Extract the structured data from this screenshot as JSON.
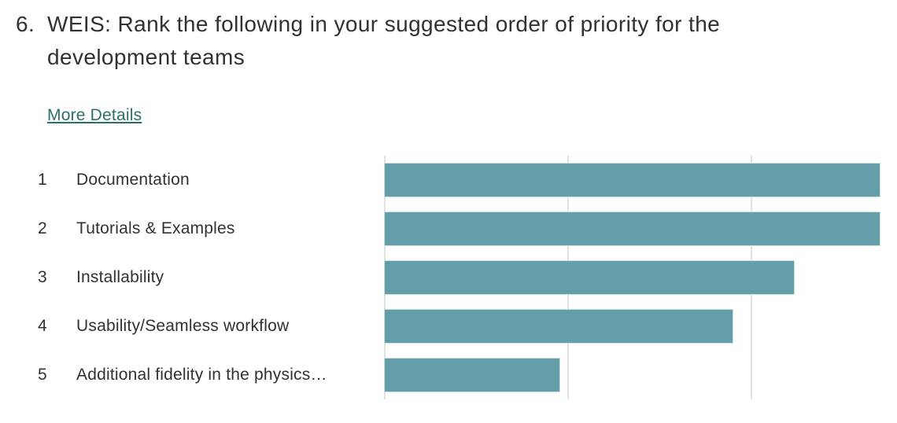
{
  "question": {
    "number": "6.",
    "title": "WEIS: Rank the following in your suggested order of priority for the development teams"
  },
  "links": {
    "more_details": "More Details"
  },
  "colors": {
    "page_bg": "#ffffff",
    "title_text": "#323130",
    "row_text": "#323130",
    "link": "#2b6e6a",
    "bar_fill": "#649ea8",
    "bar_stroke": "#cfe0e3",
    "gridline": "#e1e1e1"
  },
  "chart_data": {
    "type": "bar",
    "orientation": "horizontal",
    "title": "",
    "categories": [
      "Documentation",
      "Tutorials & Examples",
      "Installability",
      "Usability/Seamless workflow",
      "Additional fidelity in the physics…"
    ],
    "ranks": [
      1,
      2,
      3,
      4,
      5
    ],
    "values_pct_of_plot": [
      96.8,
      96.8,
      80.1,
      68.1,
      34.4
    ],
    "values_relative_to_max": [
      1.0,
      1.0,
      0.83,
      0.7,
      0.36
    ],
    "gridlines_pct": [
      0,
      35.7,
      71.5
    ],
    "bar_color": "#649ea8",
    "tick_labels_visible": false,
    "legend": "none",
    "grid": "vertical-lines-on"
  },
  "rows": [
    {
      "rank": "1",
      "label": "Documentation",
      "bar_pct": 96.8
    },
    {
      "rank": "2",
      "label": "Tutorials & Examples",
      "bar_pct": 96.8
    },
    {
      "rank": "3",
      "label": "Installability",
      "bar_pct": 80.1
    },
    {
      "rank": "4",
      "label": "Usability/Seamless workflow",
      "bar_pct": 68.1
    },
    {
      "rank": "5",
      "label": "Additional fidelity in the physics…",
      "bar_pct": 34.4
    }
  ]
}
